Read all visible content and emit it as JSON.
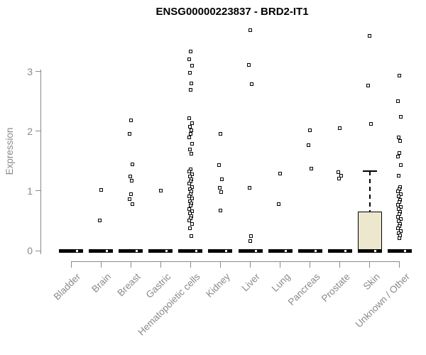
{
  "title": "ENSG00000223837 - BRD2-IT1",
  "y_axis": {
    "label": "Expression",
    "ticks": [
      0,
      1,
      2,
      3
    ]
  },
  "colors": {
    "title": "#000000",
    "axis": "#8a8a8a",
    "point": "#000000",
    "box_fill": "#ece7cd"
  },
  "chart_data": {
    "type": "boxplot",
    "title": "ENSG00000223837 - BRD2-IT1",
    "ylabel": "Expression",
    "ylim": [
      0,
      3.75
    ],
    "categories": [
      "Bladder",
      "Brain",
      "Breast",
      "Gastric",
      "Hematopoietic cells",
      "Kidney",
      "Liver",
      "Lung",
      "Pancreas",
      "Prostate",
      "Skin",
      "Unknown / Other"
    ],
    "groups": [
      {
        "category": "Bladder",
        "median": 0,
        "points": []
      },
      {
        "category": "Brain",
        "median": 0,
        "points": [
          1.02,
          0.5
        ]
      },
      {
        "category": "Breast",
        "median": 0,
        "points": [
          2.18,
          1.96,
          1.44,
          1.24,
          1.17,
          0.95,
          0.86,
          0.78
        ]
      },
      {
        "category": "Gastric",
        "median": 0,
        "points": [
          1.0
        ]
      },
      {
        "category": "Hematopoietic cells",
        "median": 0,
        "points": [
          3.33,
          3.21,
          3.1,
          2.98,
          2.8,
          2.69,
          2.22,
          2.14,
          2.08,
          2.02,
          1.96,
          1.9,
          1.79,
          1.7,
          1.62,
          1.36,
          1.32,
          1.28,
          1.24,
          1.2,
          1.16,
          1.12,
          1.07,
          1.03,
          0.99,
          0.95,
          0.91,
          0.87,
          0.83,
          0.79,
          0.75,
          0.7,
          0.66,
          0.62,
          0.58,
          0.54,
          0.51,
          0.45,
          0.38,
          0.24
        ]
      },
      {
        "category": "Kidney",
        "median": 0,
        "points": [
          1.96,
          1.43,
          1.2,
          1.05,
          0.98,
          0.67
        ]
      },
      {
        "category": "Liver",
        "median": 0,
        "points": [
          3.69,
          3.11,
          2.79,
          1.05,
          0.24,
          0.16
        ]
      },
      {
        "category": "Lung",
        "median": 0,
        "points": [
          1.29,
          0.78
        ]
      },
      {
        "category": "Pancreas",
        "median": 0,
        "points": [
          2.02,
          1.76,
          1.37
        ]
      },
      {
        "category": "Prostate",
        "median": 0,
        "points": [
          2.05,
          1.31,
          1.26,
          1.21
        ]
      },
      {
        "category": "Skin",
        "median": 0,
        "box": {
          "q1": 0,
          "q3": 0.65,
          "whisker_high": 1.33
        },
        "points": [
          3.6,
          2.76,
          2.12
        ]
      },
      {
        "category": "Unknown / Other",
        "median": 0,
        "points": [
          2.93,
          2.5,
          2.24,
          1.9,
          1.84,
          1.64,
          1.57,
          1.43,
          1.26,
          1.07,
          1.03,
          0.99,
          0.95,
          0.91,
          0.85,
          0.81,
          0.77,
          0.73,
          0.69,
          0.65,
          0.61,
          0.57,
          0.53,
          0.49,
          0.45,
          0.41,
          0.37,
          0.33,
          0.29,
          0.25,
          0.21
        ]
      }
    ]
  }
}
